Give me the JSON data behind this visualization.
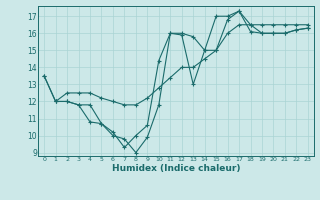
{
  "xlabel": "Humidex (Indice chaleur)",
  "xlim": [
    -0.5,
    23.5
  ],
  "ylim": [
    8.8,
    17.6
  ],
  "yticks": [
    9,
    10,
    11,
    12,
    13,
    14,
    15,
    16,
    17
  ],
  "xticks": [
    0,
    1,
    2,
    3,
    4,
    5,
    6,
    7,
    8,
    9,
    10,
    11,
    12,
    13,
    14,
    15,
    16,
    17,
    18,
    19,
    20,
    21,
    22,
    23
  ],
  "bg_color": "#cce8e8",
  "line_color": "#1a6b6b",
  "grid_color": "#aad4d4",
  "line1": [
    [
      0,
      13.5
    ],
    [
      1,
      12.0
    ],
    [
      2,
      12.0
    ],
    [
      3,
      11.8
    ],
    [
      4,
      10.8
    ],
    [
      5,
      10.7
    ],
    [
      6,
      10.0
    ],
    [
      7,
      9.8
    ],
    [
      8,
      9.0
    ],
    [
      9,
      9.9
    ],
    [
      10,
      11.8
    ],
    [
      11,
      16.0
    ],
    [
      12,
      16.0
    ],
    [
      13,
      15.8
    ],
    [
      14,
      15.0
    ],
    [
      15,
      17.0
    ],
    [
      16,
      17.0
    ],
    [
      17,
      17.3
    ],
    [
      18,
      16.5
    ],
    [
      19,
      16.0
    ],
    [
      20,
      16.0
    ],
    [
      21,
      16.0
    ],
    [
      22,
      16.2
    ],
    [
      23,
      16.3
    ]
  ],
  "line2": [
    [
      1,
      12.0
    ],
    [
      2,
      12.0
    ],
    [
      3,
      11.8
    ],
    [
      4,
      11.8
    ],
    [
      5,
      10.7
    ],
    [
      6,
      10.2
    ],
    [
      7,
      9.3
    ],
    [
      8,
      10.0
    ],
    [
      9,
      10.6
    ],
    [
      10,
      14.4
    ],
    [
      11,
      16.0
    ],
    [
      12,
      15.9
    ],
    [
      13,
      13.0
    ],
    [
      14,
      15.0
    ],
    [
      15,
      15.0
    ],
    [
      16,
      16.8
    ],
    [
      17,
      17.3
    ],
    [
      18,
      16.1
    ],
    [
      19,
      16.0
    ],
    [
      20,
      16.0
    ],
    [
      21,
      16.0
    ],
    [
      22,
      16.2
    ],
    [
      23,
      16.3
    ]
  ],
  "line3": [
    [
      0,
      13.5
    ],
    [
      1,
      12.0
    ],
    [
      2,
      12.5
    ],
    [
      3,
      12.5
    ],
    [
      4,
      12.5
    ],
    [
      5,
      12.2
    ],
    [
      6,
      12.0
    ],
    [
      7,
      11.8
    ],
    [
      8,
      11.8
    ],
    [
      9,
      12.2
    ],
    [
      10,
      12.8
    ],
    [
      11,
      13.4
    ],
    [
      12,
      14.0
    ],
    [
      13,
      14.0
    ],
    [
      14,
      14.5
    ],
    [
      15,
      15.0
    ],
    [
      16,
      16.0
    ],
    [
      17,
      16.5
    ],
    [
      18,
      16.5
    ],
    [
      19,
      16.5
    ],
    [
      20,
      16.5
    ],
    [
      21,
      16.5
    ],
    [
      22,
      16.5
    ],
    [
      23,
      16.5
    ]
  ]
}
